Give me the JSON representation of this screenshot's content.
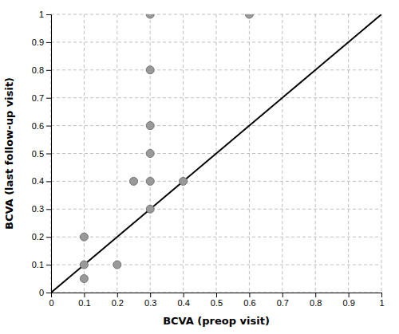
{
  "chart_data": {
    "type": "scatter",
    "xlabel": "BCVA (preop visit)",
    "ylabel": "BCVA (last follow-up visit)",
    "series": [
      {
        "type": "scatter",
        "marker": "circle",
        "color": "#999999",
        "x": [
          0.1,
          0.1,
          0.1,
          0.2,
          0.25,
          0.3,
          0.3,
          0.3,
          0.3,
          0.3,
          0.3,
          0.4,
          0.6
        ],
        "values": [
          0.1,
          0.2,
          0.05,
          0.1,
          0.4,
          1.0,
          0.8,
          0.6,
          0.5,
          0.4,
          0.3,
          0.4,
          1.0
        ]
      },
      {
        "type": "line",
        "line_style": "solid",
        "color": "#000000",
        "x": [
          0,
          1
        ],
        "values": [
          0,
          1
        ]
      }
    ],
    "xlim": [
      0,
      1
    ],
    "ylim": [
      0,
      1
    ],
    "xticks": [
      0,
      0.1,
      0.2,
      0.3,
      0.4,
      0.5,
      0.6,
      0.7,
      0.8,
      0.9,
      1
    ],
    "yticks": [
      0,
      0.1,
      0.2,
      0.3,
      0.4,
      0.5,
      0.6,
      0.7,
      0.8,
      0.9,
      1
    ],
    "grid": true
  }
}
